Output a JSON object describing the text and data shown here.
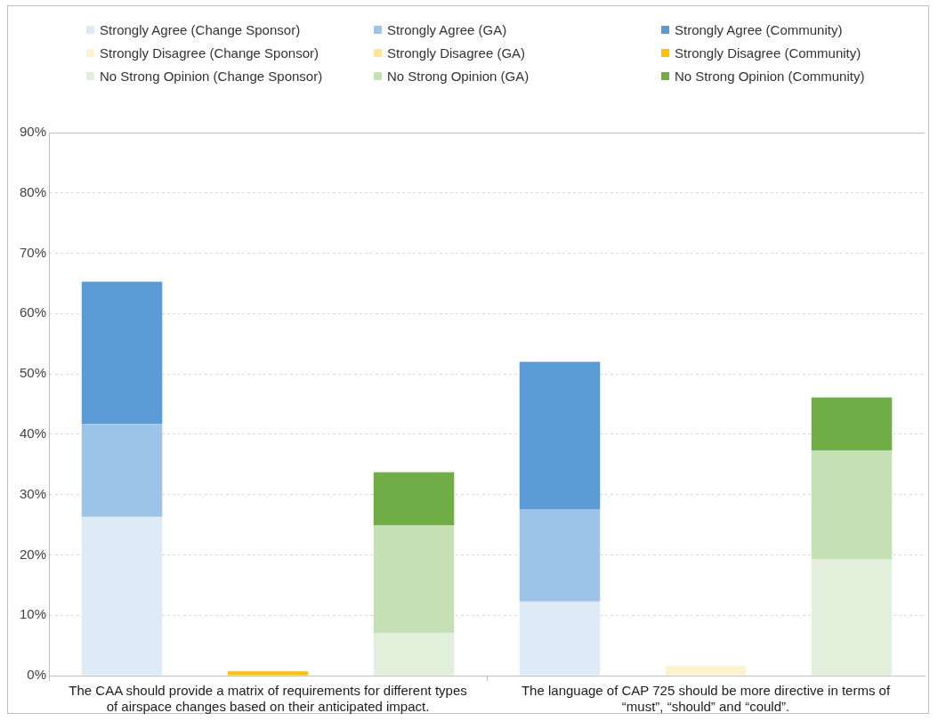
{
  "chart_data": {
    "type": "bar",
    "stacked": true,
    "legend": "top",
    "grid": "y",
    "categories": [
      null,
      "The CAA should provide a matrix of requirements for different types of airspace changes based on their anticipated impact.",
      null,
      null,
      "The language of CAP 725 should be more directive in terms of “must”, “should” and “could”.",
      null
    ],
    "ylim": [
      0,
      90
    ],
    "yticks": [
      {
        "value": 0,
        "label": "0%"
      },
      {
        "value": 10,
        "label": "10%"
      },
      {
        "value": 20,
        "label": "20%"
      },
      {
        "value": 30,
        "label": "30%"
      },
      {
        "value": 40,
        "label": "40%"
      },
      {
        "value": 50,
        "label": "50%"
      },
      {
        "value": 60,
        "label": "60%"
      },
      {
        "value": 70,
        "label": "70%"
      },
      {
        "value": 80,
        "label": "80%"
      },
      {
        "value": 90,
        "label": "90%"
      }
    ],
    "series": [
      {
        "name": "Strongly Agree (Change Sponsor)",
        "color": "#deebf7",
        "values": [
          26.3,
          null,
          null,
          12.3,
          null,
          null
        ]
      },
      {
        "name": "Strongly Agree (GA)",
        "color": "#9dc3e6",
        "values": [
          15.4,
          null,
          null,
          15.3,
          null,
          null
        ]
      },
      {
        "name": "Strongly Agree (Community)",
        "color": "#5b9bd5",
        "values": [
          23.6,
          null,
          null,
          24.4,
          null,
          null
        ]
      },
      {
        "name": "Strongly Disagree (Change Sponsor)",
        "color": "#fff2cc",
        "values": [
          null,
          0,
          null,
          null,
          1.6,
          null
        ]
      },
      {
        "name": "Strongly Disagree (GA)",
        "color": "#ffe699",
        "values": [
          null,
          0,
          null,
          null,
          0,
          null
        ]
      },
      {
        "name": "Strongly Disagree (Community)",
        "color": "#ffc000",
        "values": [
          null,
          0.7,
          null,
          null,
          0,
          null
        ]
      },
      {
        "name": "No Strong Opinion (Change Sponsor)",
        "color": "#e2efda",
        "values": [
          null,
          null,
          7.0,
          null,
          null,
          19.3
        ]
      },
      {
        "name": "No Strong Opinion (GA)",
        "color": "#c5e0b4",
        "values": [
          null,
          null,
          17.9,
          null,
          null,
          18.0
        ]
      },
      {
        "name": "No Strong Opinion (Community)",
        "color": "#70ad47",
        "values": [
          null,
          null,
          8.8,
          null,
          null,
          8.8
        ]
      }
    ]
  }
}
